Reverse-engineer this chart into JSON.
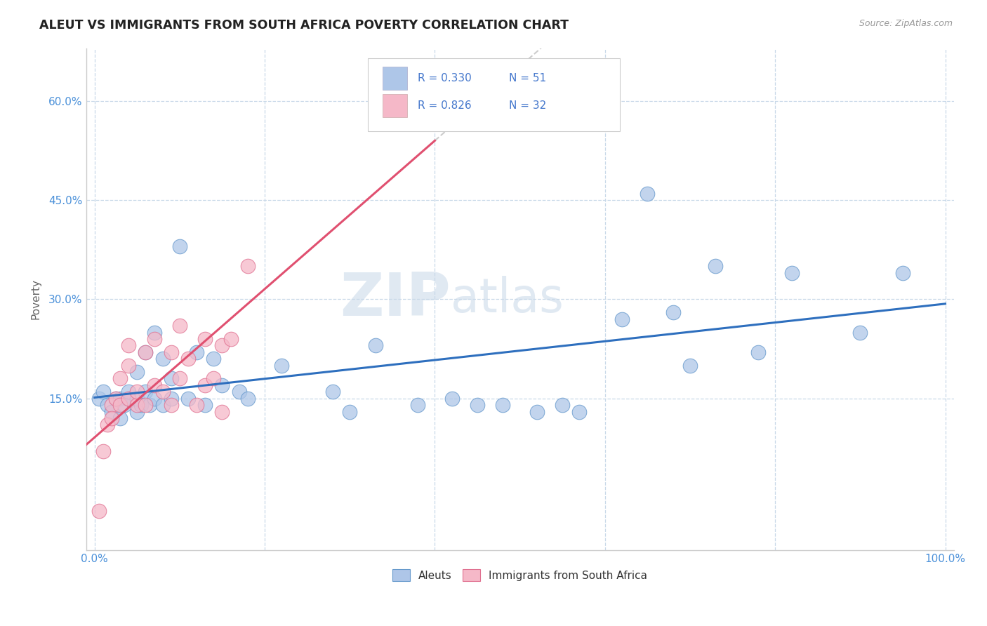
{
  "title": "ALEUT VS IMMIGRANTS FROM SOUTH AFRICA POVERTY CORRELATION CHART",
  "source": "Source: ZipAtlas.com",
  "ylabel": "Poverty",
  "xlim": [
    -0.01,
    1.01
  ],
  "ylim": [
    -0.08,
    0.68
  ],
  "xticks": [
    0.0,
    0.2,
    0.4,
    0.6,
    0.8,
    1.0
  ],
  "xticklabels": [
    "0.0%",
    "",
    "",
    "",
    "",
    "100.0%"
  ],
  "yticks": [
    0.15,
    0.3,
    0.45,
    0.6
  ],
  "yticklabels": [
    "15.0%",
    "30.0%",
    "45.0%",
    "60.0%"
  ],
  "aleut_r": 0.33,
  "aleut_n": 51,
  "sa_r": 0.826,
  "sa_n": 32,
  "aleut_color": "#aec6e8",
  "aleut_edge_color": "#6699cc",
  "sa_color": "#f5b8c8",
  "sa_edge_color": "#e07090",
  "aleut_line_color": "#2e6fbe",
  "sa_line_color": "#e05070",
  "sa_dash_color": "#cccccc",
  "watermark_zip": "ZIP",
  "watermark_atlas": "atlas",
  "background_color": "#ffffff",
  "grid_color": "#c8d8e8",
  "legend_r_color": "#4477cc",
  "legend_n_color": "#3355aa",
  "tick_color": "#4a90d9",
  "aleut_x": [
    0.005,
    0.01,
    0.015,
    0.02,
    0.025,
    0.03,
    0.03,
    0.035,
    0.04,
    0.04,
    0.05,
    0.05,
    0.05,
    0.055,
    0.06,
    0.06,
    0.065,
    0.07,
    0.07,
    0.08,
    0.08,
    0.09,
    0.09,
    0.1,
    0.11,
    0.12,
    0.13,
    0.14,
    0.15,
    0.17,
    0.18,
    0.22,
    0.28,
    0.3,
    0.33,
    0.38,
    0.42,
    0.45,
    0.48,
    0.52,
    0.55,
    0.57,
    0.62,
    0.65,
    0.68,
    0.7,
    0.73,
    0.78,
    0.82,
    0.9,
    0.95
  ],
  "aleut_y": [
    0.15,
    0.16,
    0.14,
    0.13,
    0.15,
    0.15,
    0.12,
    0.14,
    0.15,
    0.16,
    0.13,
    0.15,
    0.19,
    0.14,
    0.22,
    0.16,
    0.14,
    0.15,
    0.25,
    0.14,
    0.21,
    0.15,
    0.18,
    0.38,
    0.15,
    0.22,
    0.14,
    0.21,
    0.17,
    0.16,
    0.15,
    0.2,
    0.16,
    0.13,
    0.23,
    0.14,
    0.15,
    0.14,
    0.14,
    0.13,
    0.14,
    0.13,
    0.27,
    0.46,
    0.28,
    0.2,
    0.35,
    0.22,
    0.34,
    0.25,
    0.34
  ],
  "sa_x": [
    0.005,
    0.01,
    0.015,
    0.02,
    0.02,
    0.025,
    0.03,
    0.03,
    0.04,
    0.04,
    0.04,
    0.05,
    0.05,
    0.06,
    0.06,
    0.07,
    0.07,
    0.08,
    0.09,
    0.09,
    0.1,
    0.1,
    0.11,
    0.12,
    0.13,
    0.13,
    0.14,
    0.15,
    0.15,
    0.16,
    0.18,
    0.35
  ],
  "sa_y": [
    -0.02,
    0.07,
    0.11,
    0.14,
    0.12,
    0.15,
    0.14,
    0.18,
    0.15,
    0.2,
    0.23,
    0.14,
    0.16,
    0.22,
    0.14,
    0.24,
    0.17,
    0.16,
    0.22,
    0.14,
    0.18,
    0.26,
    0.21,
    0.14,
    0.17,
    0.24,
    0.18,
    0.23,
    0.13,
    0.24,
    0.35,
    0.57
  ]
}
